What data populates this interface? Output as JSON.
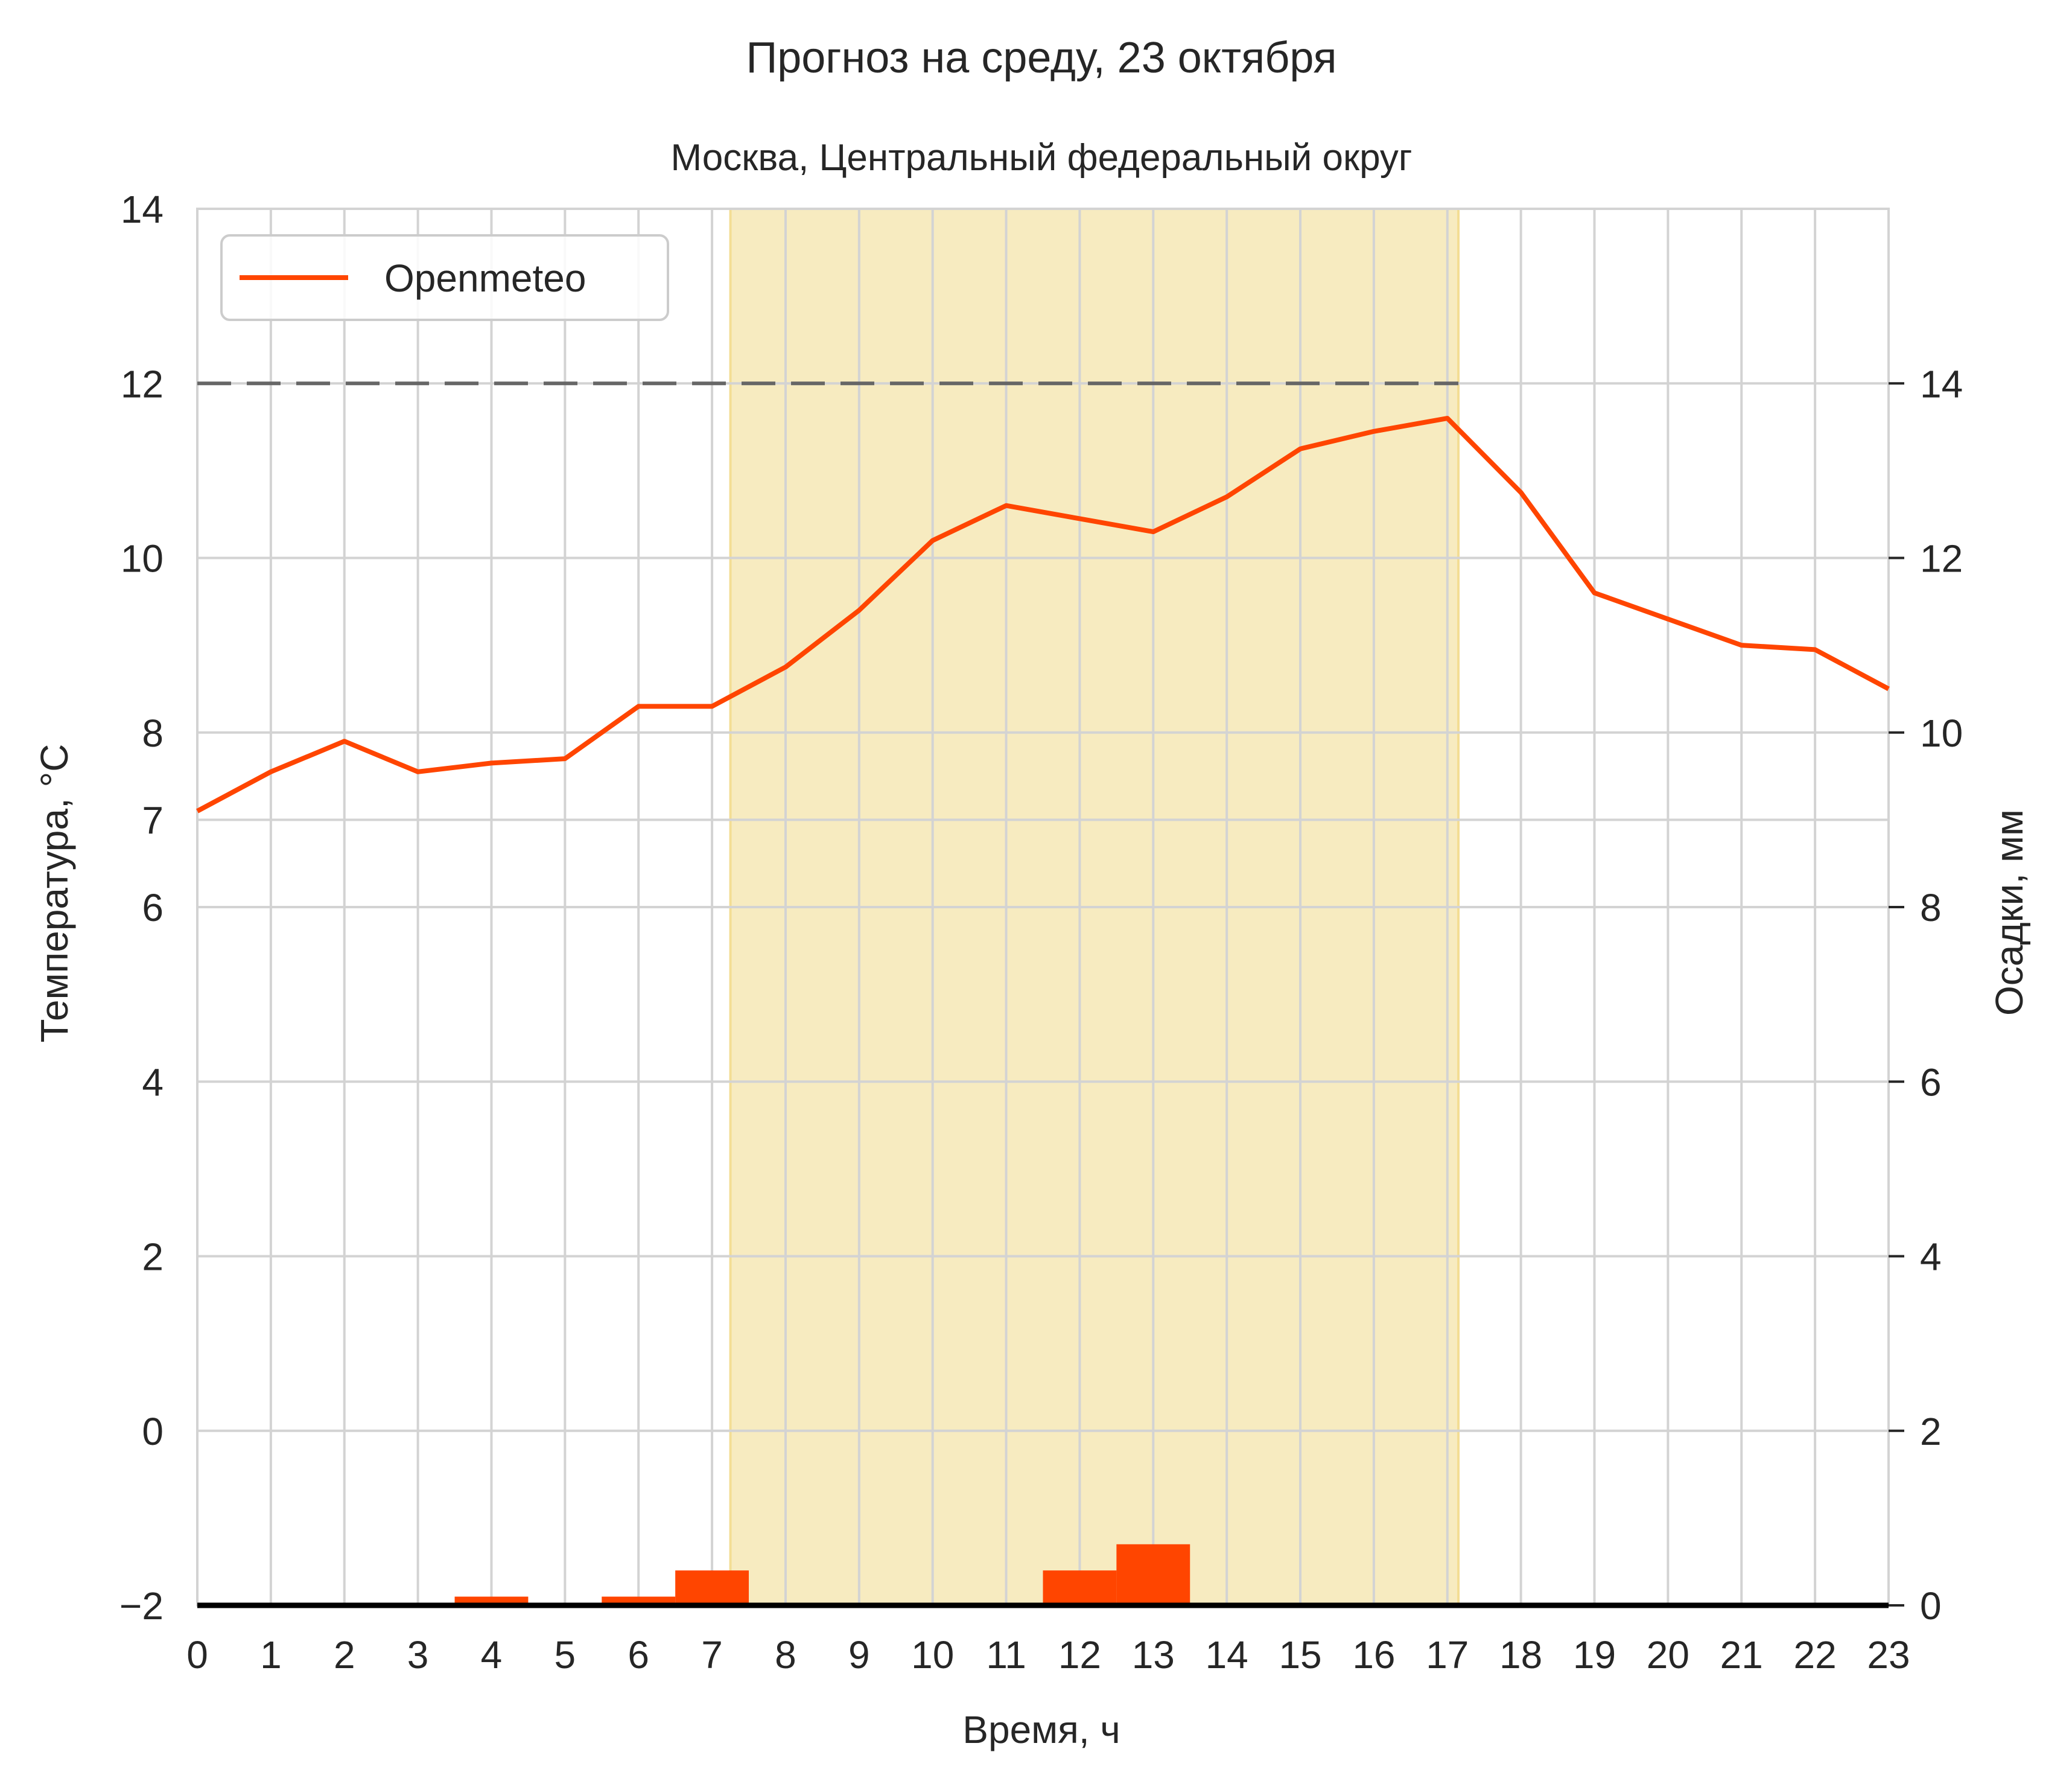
{
  "chart_data": {
    "type": "line",
    "title": "Прогноз на среду, 23 октября",
    "subtitle": "Москва, Центральный федеральный округ",
    "xlabel": "Время, ч",
    "ylabel": "Температура, °C",
    "y2label": "Осадки, мм",
    "x": [
      0,
      1,
      2,
      3,
      4,
      5,
      6,
      7,
      8,
      9,
      10,
      11,
      12,
      13,
      14,
      15,
      16,
      17,
      18,
      19,
      20,
      21,
      22,
      23
    ],
    "xlim": [
      0,
      23
    ],
    "ylim": [
      -2,
      14
    ],
    "y2lim": [
      0,
      16
    ],
    "yticks": [
      -2,
      0,
      2,
      4,
      6,
      7,
      8,
      10,
      12,
      14
    ],
    "ytick_labels": [
      "−2",
      "0",
      "2",
      "4",
      "6",
      "7",
      "8",
      "10",
      "12",
      "14"
    ],
    "y2ticks": [
      0,
      2,
      4,
      6,
      8,
      10,
      12,
      14
    ],
    "y2tick_labels": [
      "0",
      "2",
      "4",
      "6",
      "8",
      "10",
      "12",
      "14"
    ],
    "grid": true,
    "legend_position": "top-left",
    "series": [
      {
        "name": "Openmeteo",
        "color": "#ff4500",
        "values": [
          7.1,
          7.55,
          7.9,
          7.55,
          7.65,
          7.7,
          8.3,
          8.3,
          8.75,
          9.4,
          10.2,
          10.6,
          10.45,
          10.3,
          10.7,
          11.25,
          11.45,
          11.6,
          10.75,
          9.6,
          9.3,
          9.0,
          8.95,
          8.5
        ]
      }
    ],
    "precipitation": {
      "color": "#ff4500",
      "x": [
        4,
        6,
        7,
        12,
        13
      ],
      "values": [
        0.1,
        0.1,
        0.4,
        0.4,
        0.7
      ]
    },
    "daylight_band": {
      "x_start": 7.25,
      "x_end": 17.15,
      "color": "#f7ebc0"
    },
    "reference_line": {
      "y": 12,
      "x_start": 0,
      "x_end": 17.15,
      "color": "#666666"
    }
  }
}
